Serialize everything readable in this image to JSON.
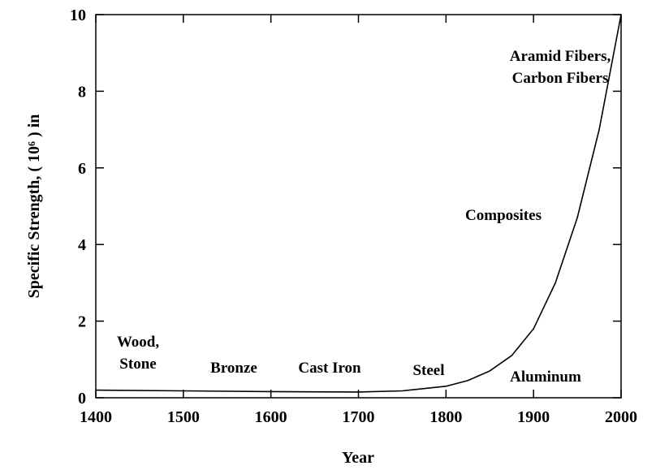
{
  "chart_data": {
    "type": "line",
    "x_label": "Year",
    "y_label": "Specific Strength, ( 10⁶ ) in",
    "x": [
      1400,
      1500,
      1600,
      1700,
      1750,
      1800,
      1825,
      1850,
      1875,
      1900,
      1925,
      1950,
      1975,
      2000
    ],
    "series": [
      {
        "color": "#000000",
        "values": [
          0.2,
          0.18,
          0.16,
          0.15,
          0.18,
          0.3,
          0.45,
          0.7,
          1.1,
          1.8,
          3.0,
          4.7,
          7.0,
          10
        ]
      }
    ],
    "xlim": [
      1400,
      2000
    ],
    "xticks": [
      1400,
      1500,
      1600,
      1700,
      1800,
      1900,
      2000
    ],
    "ylim": [
      0,
      10
    ],
    "yticks": [
      0,
      2,
      4,
      6,
      8,
      10
    ],
    "annotations": [
      [
        "Wood,",
        "Stone"
      ],
      [
        "Bronze"
      ],
      [
        "Cast Iron"
      ],
      [
        "Steel"
      ],
      [
        "Aluminum"
      ],
      [
        "Composites"
      ],
      [
        "Aramid Fibers,",
        "Carbon Fibers"
      ]
    ]
  }
}
